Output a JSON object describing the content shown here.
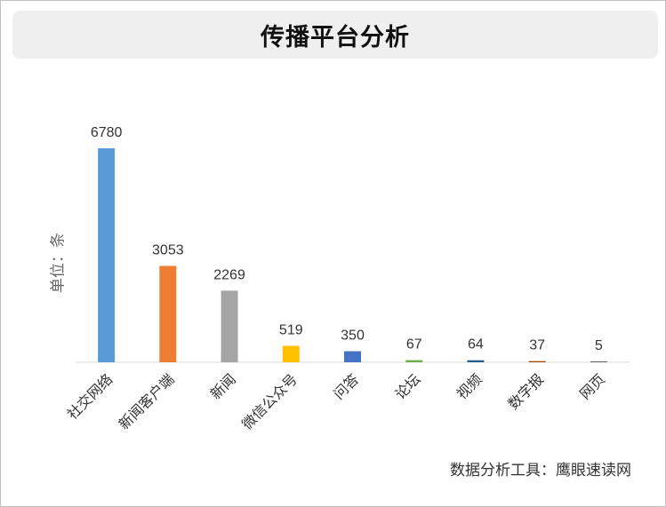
{
  "title": "传播平台分析",
  "unit_label": "单位：条",
  "source": "数据分析工具：鹰眼速读网",
  "chart_data": {
    "type": "bar",
    "title": "传播平台分析",
    "ylabel": "单位：条",
    "ylim": [
      0,
      6780
    ],
    "grid": false,
    "legend": "none",
    "categories": [
      "社交网络",
      "新闻客户端",
      "新闻",
      "微信公众号",
      "问答",
      "论坛",
      "视频",
      "数字报",
      "网页"
    ],
    "values": [
      6780,
      3053,
      2269,
      519,
      350,
      67,
      64,
      37,
      5
    ],
    "colors": [
      "#5b9bd5",
      "#ed7d31",
      "#a5a5a5",
      "#ffc000",
      "#4472c4",
      "#70ad47",
      "#255e91",
      "#9e480e",
      "#636363"
    ]
  }
}
